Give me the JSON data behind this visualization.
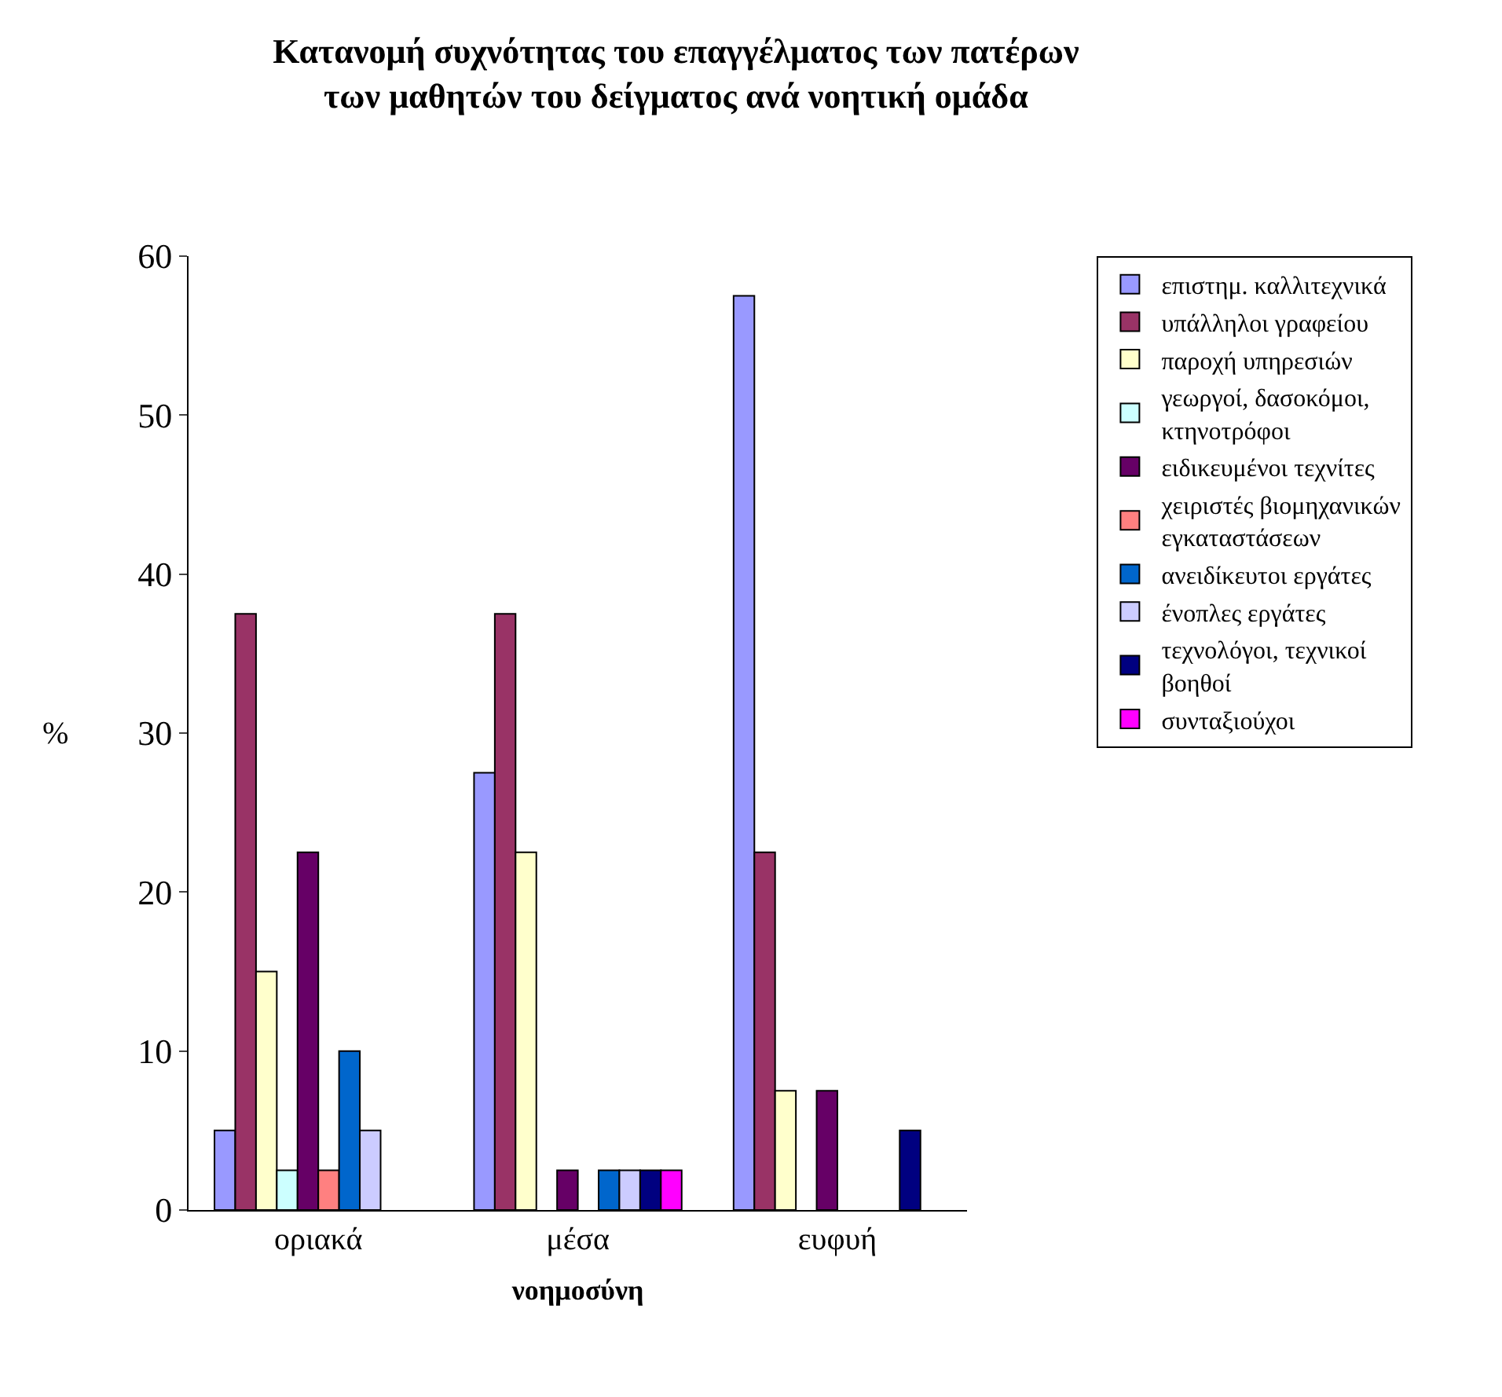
{
  "chart_data": {
    "type": "bar",
    "title": "Κατανομή συχνότητας του επαγγέλματος των πατέρων\nτων μαθητών του δείγματος ανά νοητική ομάδα",
    "xlabel": "νοημοσύνη",
    "ylabel": "%",
    "categories": [
      "οριακά",
      "μέσα",
      "ευφυή"
    ],
    "series": [
      {
        "name": "επιστημ. καλλιτεχνικά",
        "color": "#9999ff",
        "values": [
          5,
          27.5,
          57.5
        ]
      },
      {
        "name": "υπάλληλοι γραφείου",
        "color": "#993366",
        "values": [
          37.5,
          37.5,
          22.5
        ]
      },
      {
        "name": "παροχή υπηρεσιών",
        "color": "#ffffcc",
        "values": [
          15,
          22.5,
          7.5
        ]
      },
      {
        "name": "γεωργοί, δασοκόμοι, κτηνοτρόφοι",
        "color": "#ccffff",
        "values": [
          2.5,
          null,
          null
        ]
      },
      {
        "name": "ειδικευμένοι τεχνίτες",
        "color": "#660066",
        "values": [
          22.5,
          2.5,
          7.5
        ]
      },
      {
        "name": "χειριστές βιομηχανικών εγκαταστάσεων",
        "color": "#ff8080",
        "values": [
          2.5,
          null,
          null
        ]
      },
      {
        "name": "ανειδίκευτοι εργάτες",
        "color": "#0066cc",
        "values": [
          10,
          2.5,
          null
        ]
      },
      {
        "name": "ένοπλες εργάτες",
        "color": "#ccccff",
        "values": [
          5,
          2.5,
          null
        ]
      },
      {
        "name": "τεχνολόγοι, τεχνικοί βοηθοί",
        "color": "#000080",
        "values": [
          null,
          2.5,
          5
        ]
      },
      {
        "name": "συνταξιούχοι",
        "color": "#ff00ff",
        "values": [
          null,
          2.5,
          null
        ]
      }
    ],
    "ylim": [
      0,
      60
    ],
    "yticks": [
      0,
      10,
      20,
      30,
      40,
      50,
      60
    ],
    "legend": "right"
  }
}
